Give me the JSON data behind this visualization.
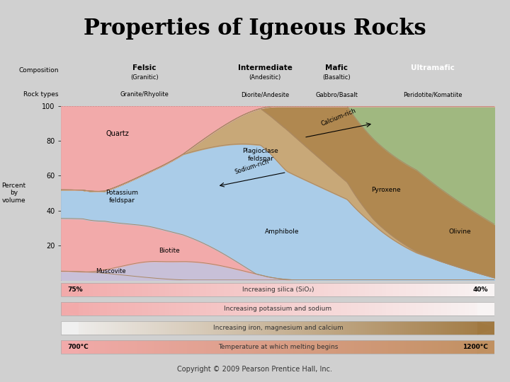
{
  "title": "Properties of Igneous Rocks",
  "title_fontsize": 22,
  "title_fontweight": "bold",
  "bg_color": "#fdfde0",
  "outer_bg": "#d0d0d0",
  "copyright": "Copyright © 2009 Pearson Prentice Hall, Inc.",
  "composition_labels_main": [
    "Felsic",
    "Intermediate",
    "Mafic",
    "Ultramafic"
  ],
  "composition_labels_sub": [
    "(Granitic)",
    "(Andesitic)",
    "(Basaltic)",
    ""
  ],
  "composition_colors": [
    "#f2aaaa",
    "#aacce8",
    "#c8c8c8",
    "#888888"
  ],
  "rock_types": [
    "Granite/Rhyolite",
    "Diorite/Andesite",
    "Gabbro/Basalt",
    "Peridotite/Komatiite"
  ],
  "rock_types_colors": [
    "#f5c0be",
    "#c5dff0",
    "#d8d8d8",
    "#aaaaaa"
  ],
  "mineral_colors": {
    "quartz": "#f2aaaa",
    "k_feldspar": "#f2aaaa",
    "biotite": "#c8c0d8",
    "muscovite": "#c8c0d8",
    "plagioclase": "#aacce8",
    "amphibole": "#c8a878",
    "pyroxene": "#b08850",
    "olivine": "#a0b880"
  },
  "ylabel": "Percent\nby\nvolume",
  "bar_info": [
    {
      "label": "Increasing silica (SiO₂)",
      "left_label": "75%",
      "right_label": "40%",
      "color_left": "#f2aaaa",
      "color_right": "#f8f4f4",
      "direction": "left"
    },
    {
      "label": "Increasing potassium and sodium",
      "left_label": "",
      "right_label": "",
      "color_left": "#f2aaaa",
      "color_right": "#f8f4f4",
      "direction": "left"
    },
    {
      "label": "Increasing iron, magnesium and calcium",
      "left_label": "",
      "right_label": "",
      "color_left": "#f0f0f0",
      "color_right": "#a07840",
      "direction": "right"
    },
    {
      "label": "Temperature at which melting begins",
      "left_label": "700°C",
      "right_label": "1200°C",
      "color_left": "#f2aaaa",
      "color_right": "#c09060",
      "direction": "right"
    }
  ]
}
